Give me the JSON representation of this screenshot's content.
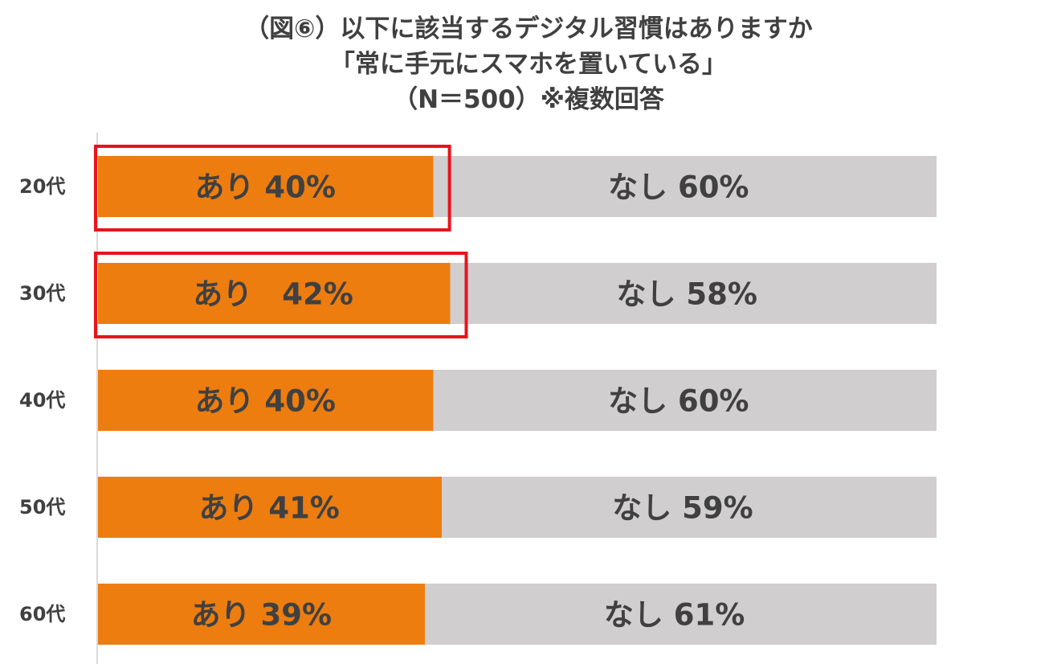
{
  "title_lines": [
    "（図⑥）以下に該当するデジタル習慣はありますか",
    "「常に手元にスマホを置いている」",
    "（N＝500）※複数回答"
  ],
  "colors": {
    "yes": "#ED7D0F",
    "no": "#D0CECE",
    "highlight": "#E8141B",
    "text": "#404040",
    "axis": "#D9D9D9"
  },
  "chart_data": {
    "type": "bar",
    "orientation": "horizontal",
    "stacked": true,
    "percent": true,
    "categories": [
      "20代",
      "30代",
      "40代",
      "50代",
      "60代"
    ],
    "series": [
      {
        "name": "あり",
        "values": [
          40,
          42,
          40,
          41,
          39
        ]
      },
      {
        "name": "なし",
        "values": [
          60,
          58,
          60,
          59,
          61
        ]
      }
    ],
    "data_labels": {
      "あり": [
        "あり 40%",
        "あり　42%",
        "あり 40%",
        "あり 41%",
        "あり 39%"
      ],
      "なし": [
        "なし 60%",
        "なし 58%",
        "なし 60%",
        "なし 59%",
        "なし 61%"
      ]
    },
    "highlighted_categories": [
      "20代",
      "30代"
    ],
    "xlim": [
      0,
      100
    ],
    "grid": false,
    "legend": "none"
  }
}
